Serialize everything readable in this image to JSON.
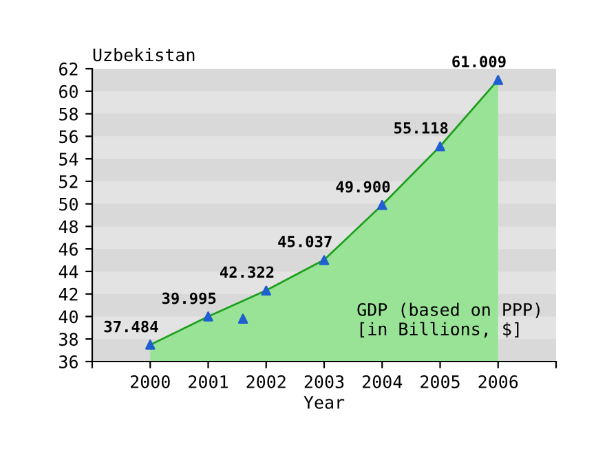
{
  "chart_data": {
    "type": "area",
    "title": "Uzbekistan",
    "xlabel": "Year",
    "annotations": [
      "GDP (based on PPP)\n[in Billions, $]"
    ],
    "x": [
      2000,
      2001,
      2002,
      2003,
      2004,
      2005,
      2006
    ],
    "series": [
      {
        "color": "#99e397",
        "values": [
          37.484,
          39.995,
          42.322,
          45.037,
          49.9,
          55.118,
          61.009
        ],
        "value_labels": [
          "37.484",
          "39.995",
          "42.322",
          "45.037",
          "49.900",
          "55.118",
          "61.009"
        ]
      },
      {
        "type": "scatter",
        "color": "#1f5fcf",
        "marker": "triangle",
        "x": [
          2000,
          2001,
          2001.6,
          2002,
          2003,
          2004,
          2005,
          2006
        ],
        "values": [
          37.5,
          40.0,
          39.8,
          42.3,
          45.0,
          49.9,
          55.1,
          61.0
        ]
      }
    ],
    "bands": [
      {
        "axis": "y",
        "from": 36,
        "to": 38,
        "color": "#d9d9d9"
      },
      {
        "axis": "y",
        "from": 40,
        "to": 42,
        "color": "#d9d9d9"
      },
      {
        "axis": "y",
        "from": 44,
        "to": 46,
        "color": "#d9d9d9"
      },
      {
        "axis": "y",
        "from": 48,
        "to": 50,
        "color": "#d9d9d9"
      },
      {
        "axis": "y",
        "from": 52,
        "to": 54,
        "color": "#d9d9d9"
      },
      {
        "axis": "y",
        "from": 56,
        "to": 58,
        "color": "#d9d9d9"
      },
      {
        "axis": "y",
        "from": 60,
        "to": 62,
        "color": "#d9d9d9"
      }
    ],
    "xlim": [
      1999,
      2007
    ],
    "xticks": [
      {
        "value": 1999,
        "label": null
      },
      2000,
      2001,
      2002,
      2003,
      2004,
      2005,
      2006,
      {
        "value": 2007,
        "label": null
      }
    ],
    "ylim": [
      36,
      62
    ],
    "yticks": [
      36,
      38,
      40,
      42,
      44,
      46,
      48,
      50,
      52,
      54,
      56,
      58,
      60,
      62
    ]
  }
}
